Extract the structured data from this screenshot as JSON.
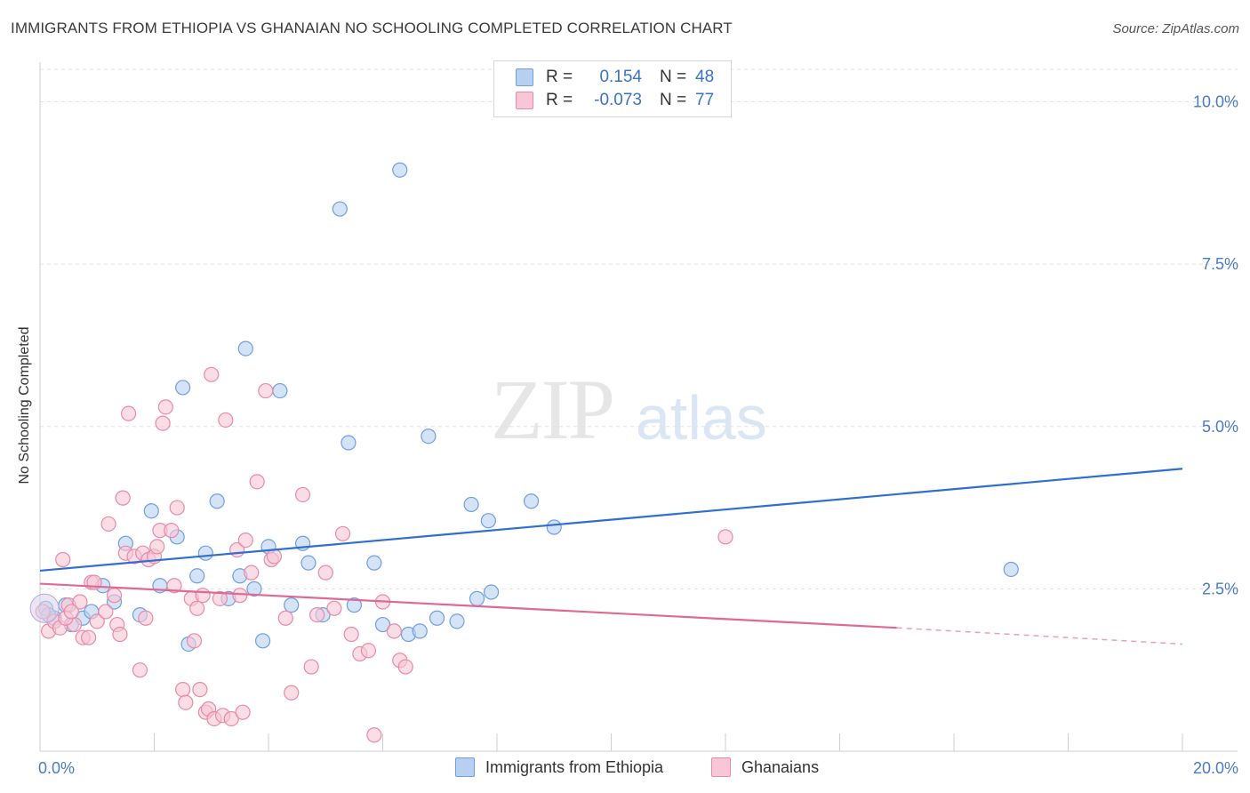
{
  "title": "IMMIGRANTS FROM ETHIOPIA VS GHANAIAN NO SCHOOLING COMPLETED CORRELATION CHART",
  "source": "Source: ZipAtlas.com",
  "watermark": {
    "zip": "ZIP",
    "atlas": "atlas"
  },
  "legend": {
    "rows": [
      {
        "r_label": "R =",
        "r_value": "0.154",
        "n_label": "N =",
        "n_value": "48",
        "fill": "#b8d0f0",
        "stroke": "#6f9fe0"
      },
      {
        "r_label": "R =",
        "r_value": "-0.073",
        "n_label": "N =",
        "n_value": "77",
        "fill": "#f8c6d6",
        "stroke": "#e88aa8"
      }
    ]
  },
  "bottom_legend": [
    {
      "label": "Immigrants from Ethiopia",
      "fill": "#b8d0f0",
      "stroke": "#6f9fe0"
    },
    {
      "label": "Ghanaians",
      "fill": "#f8c6d6",
      "stroke": "#e88aa8"
    }
  ],
  "chart_data": {
    "type": "scatter",
    "xlabel": "",
    "ylabel": "No Schooling Completed",
    "xlim": [
      0,
      20
    ],
    "ylim": [
      0,
      10.5
    ],
    "x_tick_labels": [
      "0.0%",
      "20.0%"
    ],
    "y_tick_labels": [
      "2.5%",
      "5.0%",
      "7.5%",
      "10.0%"
    ],
    "y_ticks": [
      2.5,
      5.0,
      7.5,
      10.0
    ],
    "grid": true,
    "series": [
      {
        "name": "Immigrants from Ethiopia",
        "color": "#6f9fe0",
        "fill": "#b8d0f0",
        "points": [
          [
            0.1,
            2.2
          ],
          [
            0.25,
            2.05
          ],
          [
            0.45,
            2.25
          ],
          [
            0.55,
            1.95
          ],
          [
            0.75,
            2.05
          ],
          [
            0.9,
            2.15
          ],
          [
            1.1,
            2.55
          ],
          [
            1.3,
            2.3
          ],
          [
            1.5,
            3.2
          ],
          [
            1.75,
            2.1
          ],
          [
            1.95,
            3.7
          ],
          [
            2.1,
            2.55
          ],
          [
            2.4,
            3.3
          ],
          [
            2.5,
            5.6
          ],
          [
            2.6,
            1.65
          ],
          [
            2.75,
            2.7
          ],
          [
            2.9,
            3.05
          ],
          [
            3.1,
            3.85
          ],
          [
            3.3,
            2.35
          ],
          [
            3.5,
            2.7
          ],
          [
            3.6,
            6.2
          ],
          [
            3.75,
            2.5
          ],
          [
            3.9,
            1.7
          ],
          [
            4.0,
            3.15
          ],
          [
            4.2,
            5.55
          ],
          [
            4.4,
            2.25
          ],
          [
            4.6,
            3.2
          ],
          [
            4.7,
            2.9
          ],
          [
            4.95,
            2.1
          ],
          [
            5.25,
            8.35
          ],
          [
            5.4,
            4.75
          ],
          [
            5.5,
            2.25
          ],
          [
            5.85,
            2.9
          ],
          [
            6.0,
            1.95
          ],
          [
            6.3,
            8.95
          ],
          [
            6.45,
            1.8
          ],
          [
            6.65,
            1.85
          ],
          [
            6.8,
            4.85
          ],
          [
            6.95,
            2.05
          ],
          [
            7.3,
            2.0
          ],
          [
            7.55,
            3.8
          ],
          [
            7.65,
            2.35
          ],
          [
            7.85,
            3.55
          ],
          [
            7.9,
            2.45
          ],
          [
            8.6,
            3.85
          ],
          [
            9.0,
            3.45
          ],
          [
            17.0,
            2.8
          ],
          [
            0.15,
            2.1
          ]
        ],
        "trend": {
          "x": [
            0,
            20
          ],
          "y": [
            2.78,
            4.35
          ]
        }
      },
      {
        "name": "Ghanaians",
        "color": "#e88aa8",
        "fill": "#f8c6d6",
        "points": [
          [
            0.05,
            2.15
          ],
          [
            0.15,
            1.85
          ],
          [
            0.25,
            2.0
          ],
          [
            0.35,
            1.9
          ],
          [
            0.4,
            2.95
          ],
          [
            0.5,
            2.25
          ],
          [
            0.6,
            1.95
          ],
          [
            0.7,
            2.3
          ],
          [
            0.75,
            1.75
          ],
          [
            0.85,
            1.75
          ],
          [
            0.9,
            2.6
          ],
          [
            0.95,
            2.6
          ],
          [
            1.0,
            2.0
          ],
          [
            1.15,
            2.15
          ],
          [
            1.2,
            3.5
          ],
          [
            1.3,
            2.4
          ],
          [
            1.35,
            1.95
          ],
          [
            1.4,
            1.8
          ],
          [
            1.45,
            3.9
          ],
          [
            1.5,
            3.05
          ],
          [
            1.55,
            5.2
          ],
          [
            1.65,
            3.0
          ],
          [
            1.75,
            1.25
          ],
          [
            1.8,
            3.05
          ],
          [
            1.85,
            2.05
          ],
          [
            1.9,
            2.95
          ],
          [
            2.0,
            3.0
          ],
          [
            2.05,
            3.15
          ],
          [
            2.1,
            3.4
          ],
          [
            2.15,
            5.05
          ],
          [
            2.2,
            5.3
          ],
          [
            2.3,
            3.4
          ],
          [
            2.35,
            2.55
          ],
          [
            2.4,
            3.75
          ],
          [
            2.5,
            0.95
          ],
          [
            2.55,
            0.75
          ],
          [
            2.65,
            2.35
          ],
          [
            2.7,
            1.7
          ],
          [
            2.75,
            2.2
          ],
          [
            2.8,
            0.95
          ],
          [
            2.85,
            2.4
          ],
          [
            2.9,
            0.6
          ],
          [
            2.95,
            0.65
          ],
          [
            3.0,
            5.8
          ],
          [
            3.05,
            0.5
          ],
          [
            3.15,
            2.35
          ],
          [
            3.2,
            0.55
          ],
          [
            3.25,
            5.1
          ],
          [
            3.35,
            0.5
          ],
          [
            3.45,
            3.1
          ],
          [
            3.5,
            2.4
          ],
          [
            3.55,
            0.6
          ],
          [
            3.6,
            3.25
          ],
          [
            3.7,
            2.75
          ],
          [
            3.8,
            4.15
          ],
          [
            3.95,
            5.55
          ],
          [
            4.05,
            2.95
          ],
          [
            4.1,
            3.0
          ],
          [
            4.3,
            2.05
          ],
          [
            4.4,
            0.9
          ],
          [
            4.6,
            3.95
          ],
          [
            4.75,
            1.3
          ],
          [
            4.85,
            2.1
          ],
          [
            5.0,
            2.75
          ],
          [
            5.15,
            2.2
          ],
          [
            5.3,
            3.35
          ],
          [
            5.45,
            1.8
          ],
          [
            5.6,
            1.5
          ],
          [
            5.75,
            1.55
          ],
          [
            5.85,
            0.25
          ],
          [
            6.0,
            2.3
          ],
          [
            6.2,
            1.85
          ],
          [
            6.3,
            1.4
          ],
          [
            6.4,
            1.3
          ],
          [
            12.0,
            3.3
          ],
          [
            0.45,
            2.05
          ],
          [
            0.55,
            2.15
          ]
        ],
        "trend": {
          "x": [
            0,
            15
          ],
          "y": [
            2.58,
            1.9
          ]
        },
        "trend_dashed": {
          "x": [
            15,
            20
          ],
          "y": [
            1.9,
            1.65
          ]
        }
      }
    ]
  }
}
